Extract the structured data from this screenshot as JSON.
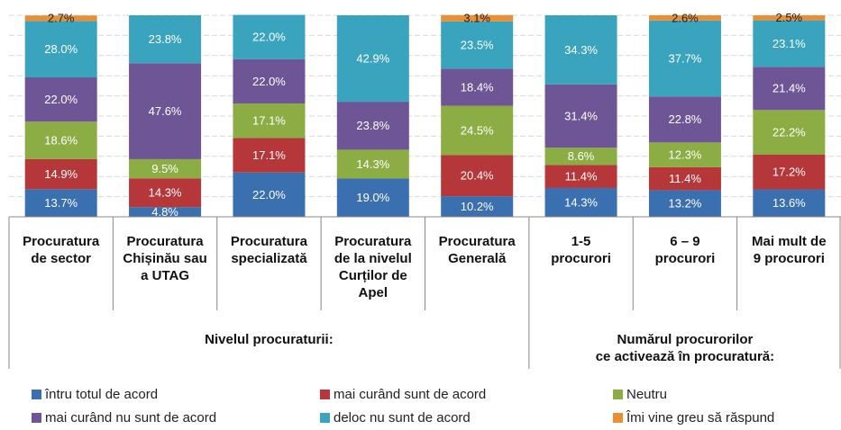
{
  "chart_data": {
    "type": "stacked_bar",
    "categories": [
      "Procuratura\nde sector",
      "Procuratura\nChișinău sau\na UTAG",
      "Procuratura\nspecializată",
      "Procuratura\nde la nivelul\nCurților de\nApel",
      "Procuratura\nGenerală",
      "1-5\nprocurori",
      "6 – 9\nprocurori",
      "Mai mult de\n9 procurori"
    ],
    "groups": [
      {
        "label": "Nivelul procuraturii:",
        "span": [
          0,
          4
        ]
      },
      {
        "label": "Numărul procurorilor\nce activează în procuratură:",
        "span": [
          5,
          7
        ]
      }
    ],
    "series": [
      {
        "name": "întru totul de acord",
        "color": "#3a6fb0",
        "values": [
          13.7,
          4.8,
          22.0,
          19.0,
          10.2,
          14.3,
          13.2,
          13.6
        ],
        "value_labels": [
          "13.7%",
          "4.8%",
          "22.0%",
          "19.0%",
          "10.2%",
          "14.3%",
          "13.2%",
          "13.6%"
        ]
      },
      {
        "name": "mai curând sunt de acord",
        "color": "#b5373a",
        "values": [
          14.9,
          14.3,
          17.1,
          null,
          20.4,
          11.4,
          11.4,
          17.2
        ],
        "value_labels": [
          "14.9%",
          "14.3%",
          "17.1%",
          null,
          "20.4%",
          "11.4%",
          "11.4%",
          "17.2%"
        ]
      },
      {
        "name": "Neutru",
        "color": "#8cac44",
        "values": [
          18.6,
          9.5,
          17.1,
          14.3,
          24.5,
          8.6,
          12.3,
          22.2
        ],
        "value_labels": [
          "18.6%",
          "9.5%",
          "17.1%",
          "14.3%",
          "24.5%",
          "8.6%",
          "12.3%",
          "22.2%"
        ]
      },
      {
        "name": "mai curând nu sunt de acord",
        "color": "#6e5596",
        "values": [
          22.0,
          47.6,
          22.0,
          23.8,
          18.4,
          31.4,
          22.8,
          21.4
        ],
        "value_labels": [
          "22.0%",
          "47.6%",
          "22.0%",
          "23.8%",
          "18.4%",
          "31.4%",
          "22.8%",
          "21.4%"
        ]
      },
      {
        "name": "deloc nu sunt de acord",
        "color": "#3aa3bd",
        "values": [
          28.0,
          23.8,
          22.0,
          42.9,
          23.5,
          34.3,
          37.7,
          23.1
        ],
        "value_labels": [
          "28.0%",
          "23.8%",
          "22.0%",
          "42.9%",
          "23.5%",
          "34.3%",
          "37.7%",
          "23.1%"
        ]
      },
      {
        "name": "Îmi vine greu să răspund",
        "color": "#ea8f36",
        "values": [
          2.7,
          null,
          null,
          null,
          3.1,
          null,
          2.6,
          2.5
        ],
        "value_labels": [
          "2.7%",
          null,
          null,
          null,
          "3.1%",
          null,
          "2.6%",
          "2.5%"
        ]
      }
    ],
    "ylim": [
      0,
      100
    ],
    "yticks": [
      0,
      10,
      20,
      30,
      40,
      50,
      60,
      70,
      80,
      90,
      100
    ],
    "grid": true
  }
}
